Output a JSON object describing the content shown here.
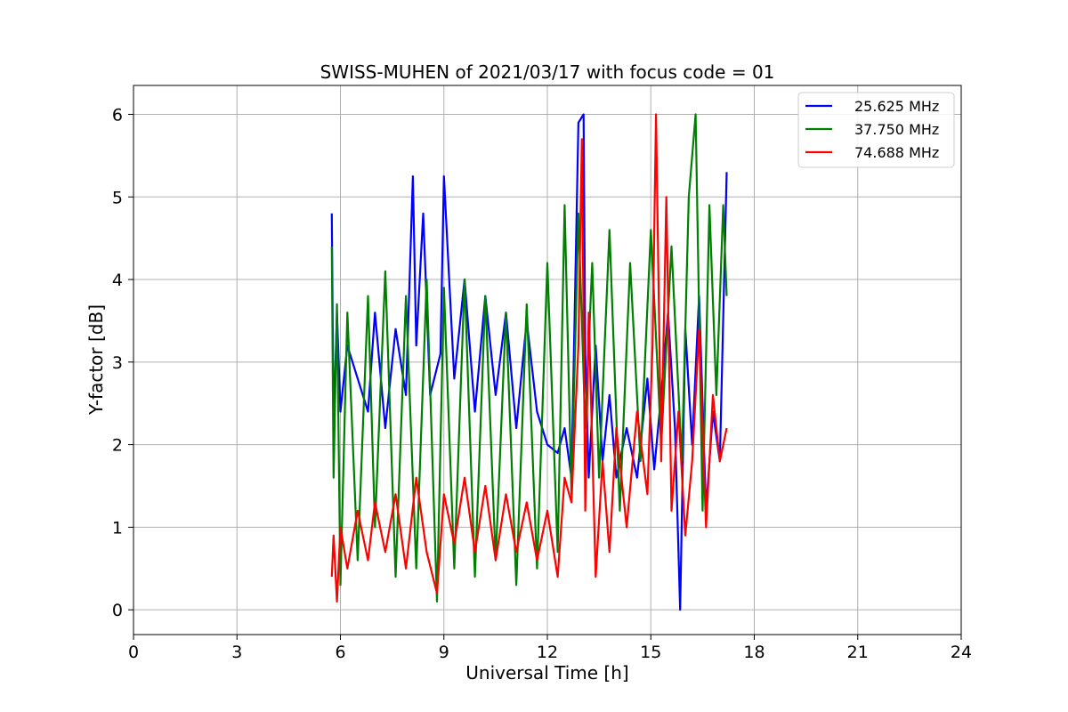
{
  "chart_data": {
    "type": "line",
    "title": "SWISS-MUHEN of 2021/03/17 with focus code = 01",
    "xlabel": "Universal Time [h]",
    "ylabel": "Y-factor [dB]",
    "xlim": [
      0,
      24
    ],
    "ylim": [
      -0.3,
      6.35
    ],
    "xticks": [
      0,
      3,
      6,
      9,
      12,
      15,
      18,
      21,
      24
    ],
    "yticks": [
      0,
      1,
      2,
      3,
      4,
      5,
      6
    ],
    "grid": true,
    "legend_position": "top-right",
    "series": [
      {
        "name": "25.625 MHz",
        "color": "#0000ff",
        "x": [
          5.75,
          5.8,
          5.9,
          6.0,
          6.2,
          6.5,
          6.8,
          7.0,
          7.3,
          7.6,
          7.9,
          8.1,
          8.2,
          8.4,
          8.6,
          8.9,
          9.0,
          9.3,
          9.6,
          9.9,
          10.2,
          10.5,
          10.8,
          11.1,
          11.4,
          11.7,
          12.0,
          12.3,
          12.5,
          12.7,
          12.9,
          13.05,
          13.1,
          13.2,
          13.4,
          13.6,
          13.8,
          14.0,
          14.3,
          14.6,
          14.9,
          15.1,
          15.3,
          15.5,
          15.7,
          15.85,
          16.0,
          16.2,
          16.4,
          16.6,
          16.8,
          17.0,
          17.2
        ],
        "values": [
          4.8,
          2.2,
          3.6,
          2.4,
          3.2,
          2.8,
          2.4,
          3.6,
          2.2,
          3.4,
          2.6,
          5.25,
          3.2,
          4.8,
          2.6,
          3.1,
          5.25,
          2.8,
          4.0,
          2.4,
          3.8,
          2.6,
          3.6,
          2.2,
          3.5,
          2.4,
          2.0,
          1.9,
          2.2,
          1.6,
          5.9,
          6.0,
          3.1,
          1.6,
          3.2,
          1.8,
          2.6,
          1.6,
          2.2,
          1.6,
          2.8,
          1.7,
          2.6,
          3.6,
          2.2,
          0.0,
          3.4,
          2.0,
          3.8,
          1.2,
          2.4,
          1.8,
          5.3
        ]
      },
      {
        "name": "37.750 MHz",
        "color": "#008000",
        "x": [
          5.75,
          5.8,
          5.9,
          6.0,
          6.2,
          6.5,
          6.8,
          7.0,
          7.3,
          7.6,
          7.9,
          8.2,
          8.5,
          8.8,
          9.0,
          9.3,
          9.6,
          9.9,
          10.2,
          10.5,
          10.8,
          11.1,
          11.4,
          11.7,
          12.0,
          12.3,
          12.5,
          12.7,
          12.9,
          13.1,
          13.3,
          13.5,
          13.8,
          14.1,
          14.4,
          14.7,
          15.0,
          15.3,
          15.6,
          15.9,
          16.1,
          16.3,
          16.5,
          16.7,
          16.9,
          17.1,
          17.2
        ],
        "values": [
          4.4,
          1.6,
          3.7,
          0.3,
          3.6,
          0.6,
          3.8,
          1.0,
          4.1,
          0.4,
          3.8,
          0.5,
          4.0,
          0.1,
          3.9,
          0.5,
          4.0,
          0.4,
          3.8,
          0.6,
          3.6,
          0.3,
          3.7,
          0.5,
          4.2,
          0.7,
          4.9,
          1.4,
          4.8,
          2.2,
          4.2,
          1.6,
          4.6,
          1.2,
          4.2,
          1.8,
          4.6,
          2.0,
          4.4,
          1.8,
          5.0,
          6.0,
          1.2,
          4.9,
          2.6,
          4.9,
          3.8
        ]
      },
      {
        "name": "74.688 MHz",
        "color": "#ff0000",
        "x": [
          5.75,
          5.8,
          5.9,
          6.0,
          6.2,
          6.5,
          6.8,
          7.0,
          7.3,
          7.6,
          7.9,
          8.2,
          8.5,
          8.8,
          9.0,
          9.3,
          9.6,
          9.9,
          10.2,
          10.5,
          10.8,
          11.1,
          11.4,
          11.7,
          12.0,
          12.3,
          12.5,
          12.7,
          12.9,
          13.0,
          13.1,
          13.2,
          13.4,
          13.6,
          13.8,
          14.0,
          14.3,
          14.6,
          14.9,
          15.05,
          15.15,
          15.3,
          15.45,
          15.6,
          15.8,
          16.0,
          16.2,
          16.4,
          16.6,
          16.8,
          17.0,
          17.2
        ],
        "values": [
          0.4,
          0.9,
          0.1,
          1.0,
          0.5,
          1.2,
          0.6,
          1.3,
          0.7,
          1.4,
          0.5,
          1.6,
          0.7,
          0.2,
          1.4,
          0.8,
          1.6,
          0.7,
          1.5,
          0.6,
          1.4,
          0.7,
          1.3,
          0.6,
          1.2,
          0.4,
          1.6,
          1.3,
          3.2,
          5.7,
          1.2,
          3.6,
          0.4,
          1.8,
          0.7,
          2.2,
          1.0,
          2.4,
          1.4,
          3.2,
          6.0,
          1.8,
          5.0,
          1.2,
          2.4,
          0.9,
          1.8,
          3.4,
          1.0,
          2.6,
          1.8,
          2.2
        ]
      }
    ]
  }
}
